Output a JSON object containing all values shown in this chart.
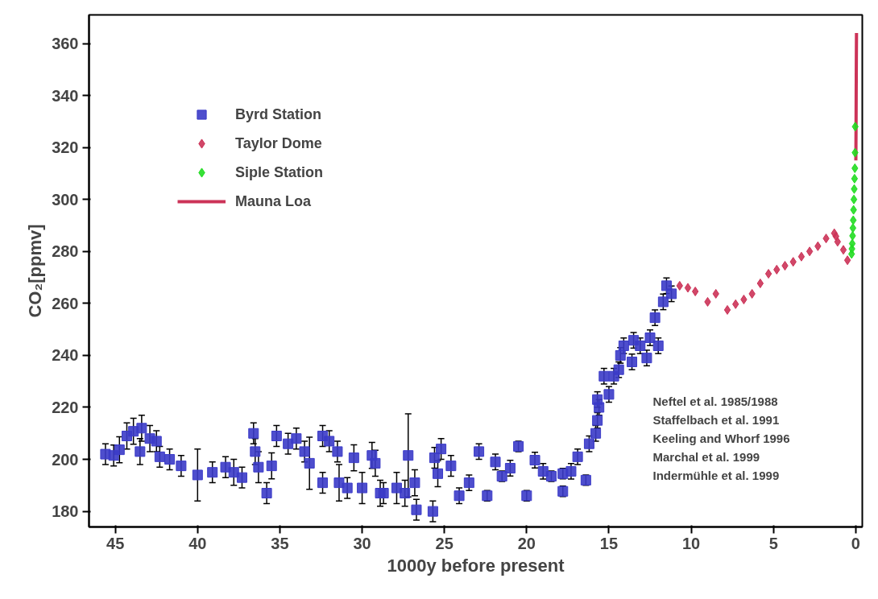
{
  "chart_data": {
    "type": "scatter",
    "xlabel": "1000y before present",
    "ylabel": "CO₂[ppmv]",
    "xlim": [
      46.6,
      -0.4
    ],
    "ylim": [
      174,
      371
    ],
    "xticks": [
      45,
      40,
      35,
      30,
      25,
      20,
      15,
      10,
      5,
      0
    ],
    "yticks": [
      180,
      200,
      220,
      240,
      260,
      280,
      300,
      320,
      340,
      360
    ],
    "grid": false,
    "legend": "top left",
    "annotations": [
      "Neftel et al. 1985/1988",
      "Staffelbach et al. 1991",
      "Keeling and Whorf 1996",
      "Marchal et al. 1999",
      "Indermühle et al. 1999"
    ],
    "series": [
      {
        "name": "Byrd Station",
        "marker": "square",
        "color": "#3b3bc8",
        "x": [
          45.6,
          45.1,
          44.75,
          44.3,
          43.9,
          43.4,
          43.5,
          42.9,
          42.5,
          42.3,
          41.7,
          41.0,
          40.0,
          39.1,
          38.3,
          37.8,
          37.3,
          36.6,
          36.5,
          36.3,
          35.8,
          35.5,
          35.2,
          34.5,
          34.0,
          33.5,
          33.2,
          32.4,
          32.0,
          32.4,
          31.5,
          31.4,
          30.9,
          30.5,
          30.0,
          29.4,
          28.9,
          29.2,
          28.7,
          27.9,
          27.2,
          27.4,
          26.7,
          26.8,
          25.7,
          25.4,
          25.2,
          25.6,
          24.6,
          24.1,
          23.5,
          22.9,
          22.4,
          21.9,
          21.5,
          21.0,
          20.5,
          20.0,
          19.5,
          19.0,
          18.5,
          17.8,
          17.8,
          17.3,
          16.9,
          16.4,
          16.2,
          15.8,
          15.7,
          15.6,
          15.7,
          15.0,
          15.3,
          14.7,
          14.4,
          14.1,
          14.3,
          13.5,
          13.6,
          13.1,
          12.7,
          12.5,
          12.2,
          12.0,
          11.7,
          11.5,
          11.2
        ],
        "values": [
          202,
          201.5,
          203.7,
          209,
          210.8,
          212,
          203,
          208,
          207,
          201,
          200,
          197.5,
          194,
          195,
          197,
          195,
          193,
          210,
          203,
          197,
          187,
          197.5,
          209,
          206,
          208,
          203,
          198.5,
          209,
          207,
          191,
          203,
          191,
          189,
          200.6,
          189,
          201.5,
          187,
          198.5,
          187,
          189,
          201.5,
          187,
          180.6,
          191,
          180,
          194.5,
          204,
          200.6,
          197.5,
          186,
          191,
          203,
          186,
          199,
          193.5,
          196.6,
          205,
          186,
          199.7,
          195.4,
          193.5,
          194.5,
          187.7,
          195.4,
          201,
          192,
          206,
          210,
          215,
          220,
          223,
          225,
          232,
          232,
          234.5,
          243.7,
          240,
          245.8,
          237.5,
          243.7,
          239,
          246.8,
          254.5,
          243.7,
          260.6,
          266.8,
          263.7
        ],
        "errors": [
          4,
          4,
          5,
          5,
          5,
          5,
          5,
          5,
          4,
          4,
          4,
          4,
          10,
          4,
          4,
          5,
          4,
          4,
          5,
          6,
          4,
          5,
          4,
          4,
          4,
          4,
          10,
          4,
          4,
          4,
          4,
          7,
          4,
          5,
          6,
          5,
          5,
          5,
          4,
          6,
          16,
          5,
          4,
          5,
          4,
          5,
          4,
          4,
          4,
          3,
          3,
          3,
          2,
          3,
          2,
          3,
          2,
          2,
          3,
          3,
          2,
          2,
          2,
          3,
          3,
          2,
          3,
          3,
          3,
          3,
          3,
          3,
          3,
          3,
          3,
          3,
          3,
          3,
          3,
          3,
          3,
          3,
          3,
          3,
          3,
          3,
          3
        ]
      },
      {
        "name": "Taylor Dome",
        "marker": "diamond",
        "color": "#cc3358",
        "x": [
          10.7,
          10.2,
          9.75,
          9.0,
          8.5,
          7.8,
          7.3,
          6.8,
          6.3,
          5.8,
          5.3,
          4.8,
          4.3,
          3.8,
          3.3,
          2.8,
          2.3,
          1.8,
          1.3,
          1.2,
          1.1,
          0.75,
          0.5
        ],
        "values": [
          266.8,
          266,
          264.6,
          260.6,
          263.7,
          257.5,
          259.7,
          261.5,
          263.7,
          267.7,
          271.4,
          273,
          274.5,
          276,
          278,
          280,
          282,
          285,
          287,
          285.8,
          283.7,
          280.6,
          276.6
        ]
      },
      {
        "name": "Siple Station",
        "marker": "diamond",
        "color": "#22dd22",
        "x": [
          0.25,
          0.23,
          0.21,
          0.19,
          0.17,
          0.15,
          0.13,
          0.11,
          0.09,
          0.07,
          0.05,
          0.04,
          0.03
        ],
        "values": [
          279,
          281,
          283,
          286,
          289,
          292,
          296,
          300,
          304,
          308,
          312,
          318,
          328
        ]
      },
      {
        "name": "Mauna Loa",
        "type": "line",
        "marker": "none",
        "color": "#cc3358",
        "x": [
          -0.008,
          -0.018,
          -0.028,
          -0.038,
          -0.048
        ],
        "values": [
          315,
          325,
          339,
          354,
          364
        ]
      }
    ]
  }
}
